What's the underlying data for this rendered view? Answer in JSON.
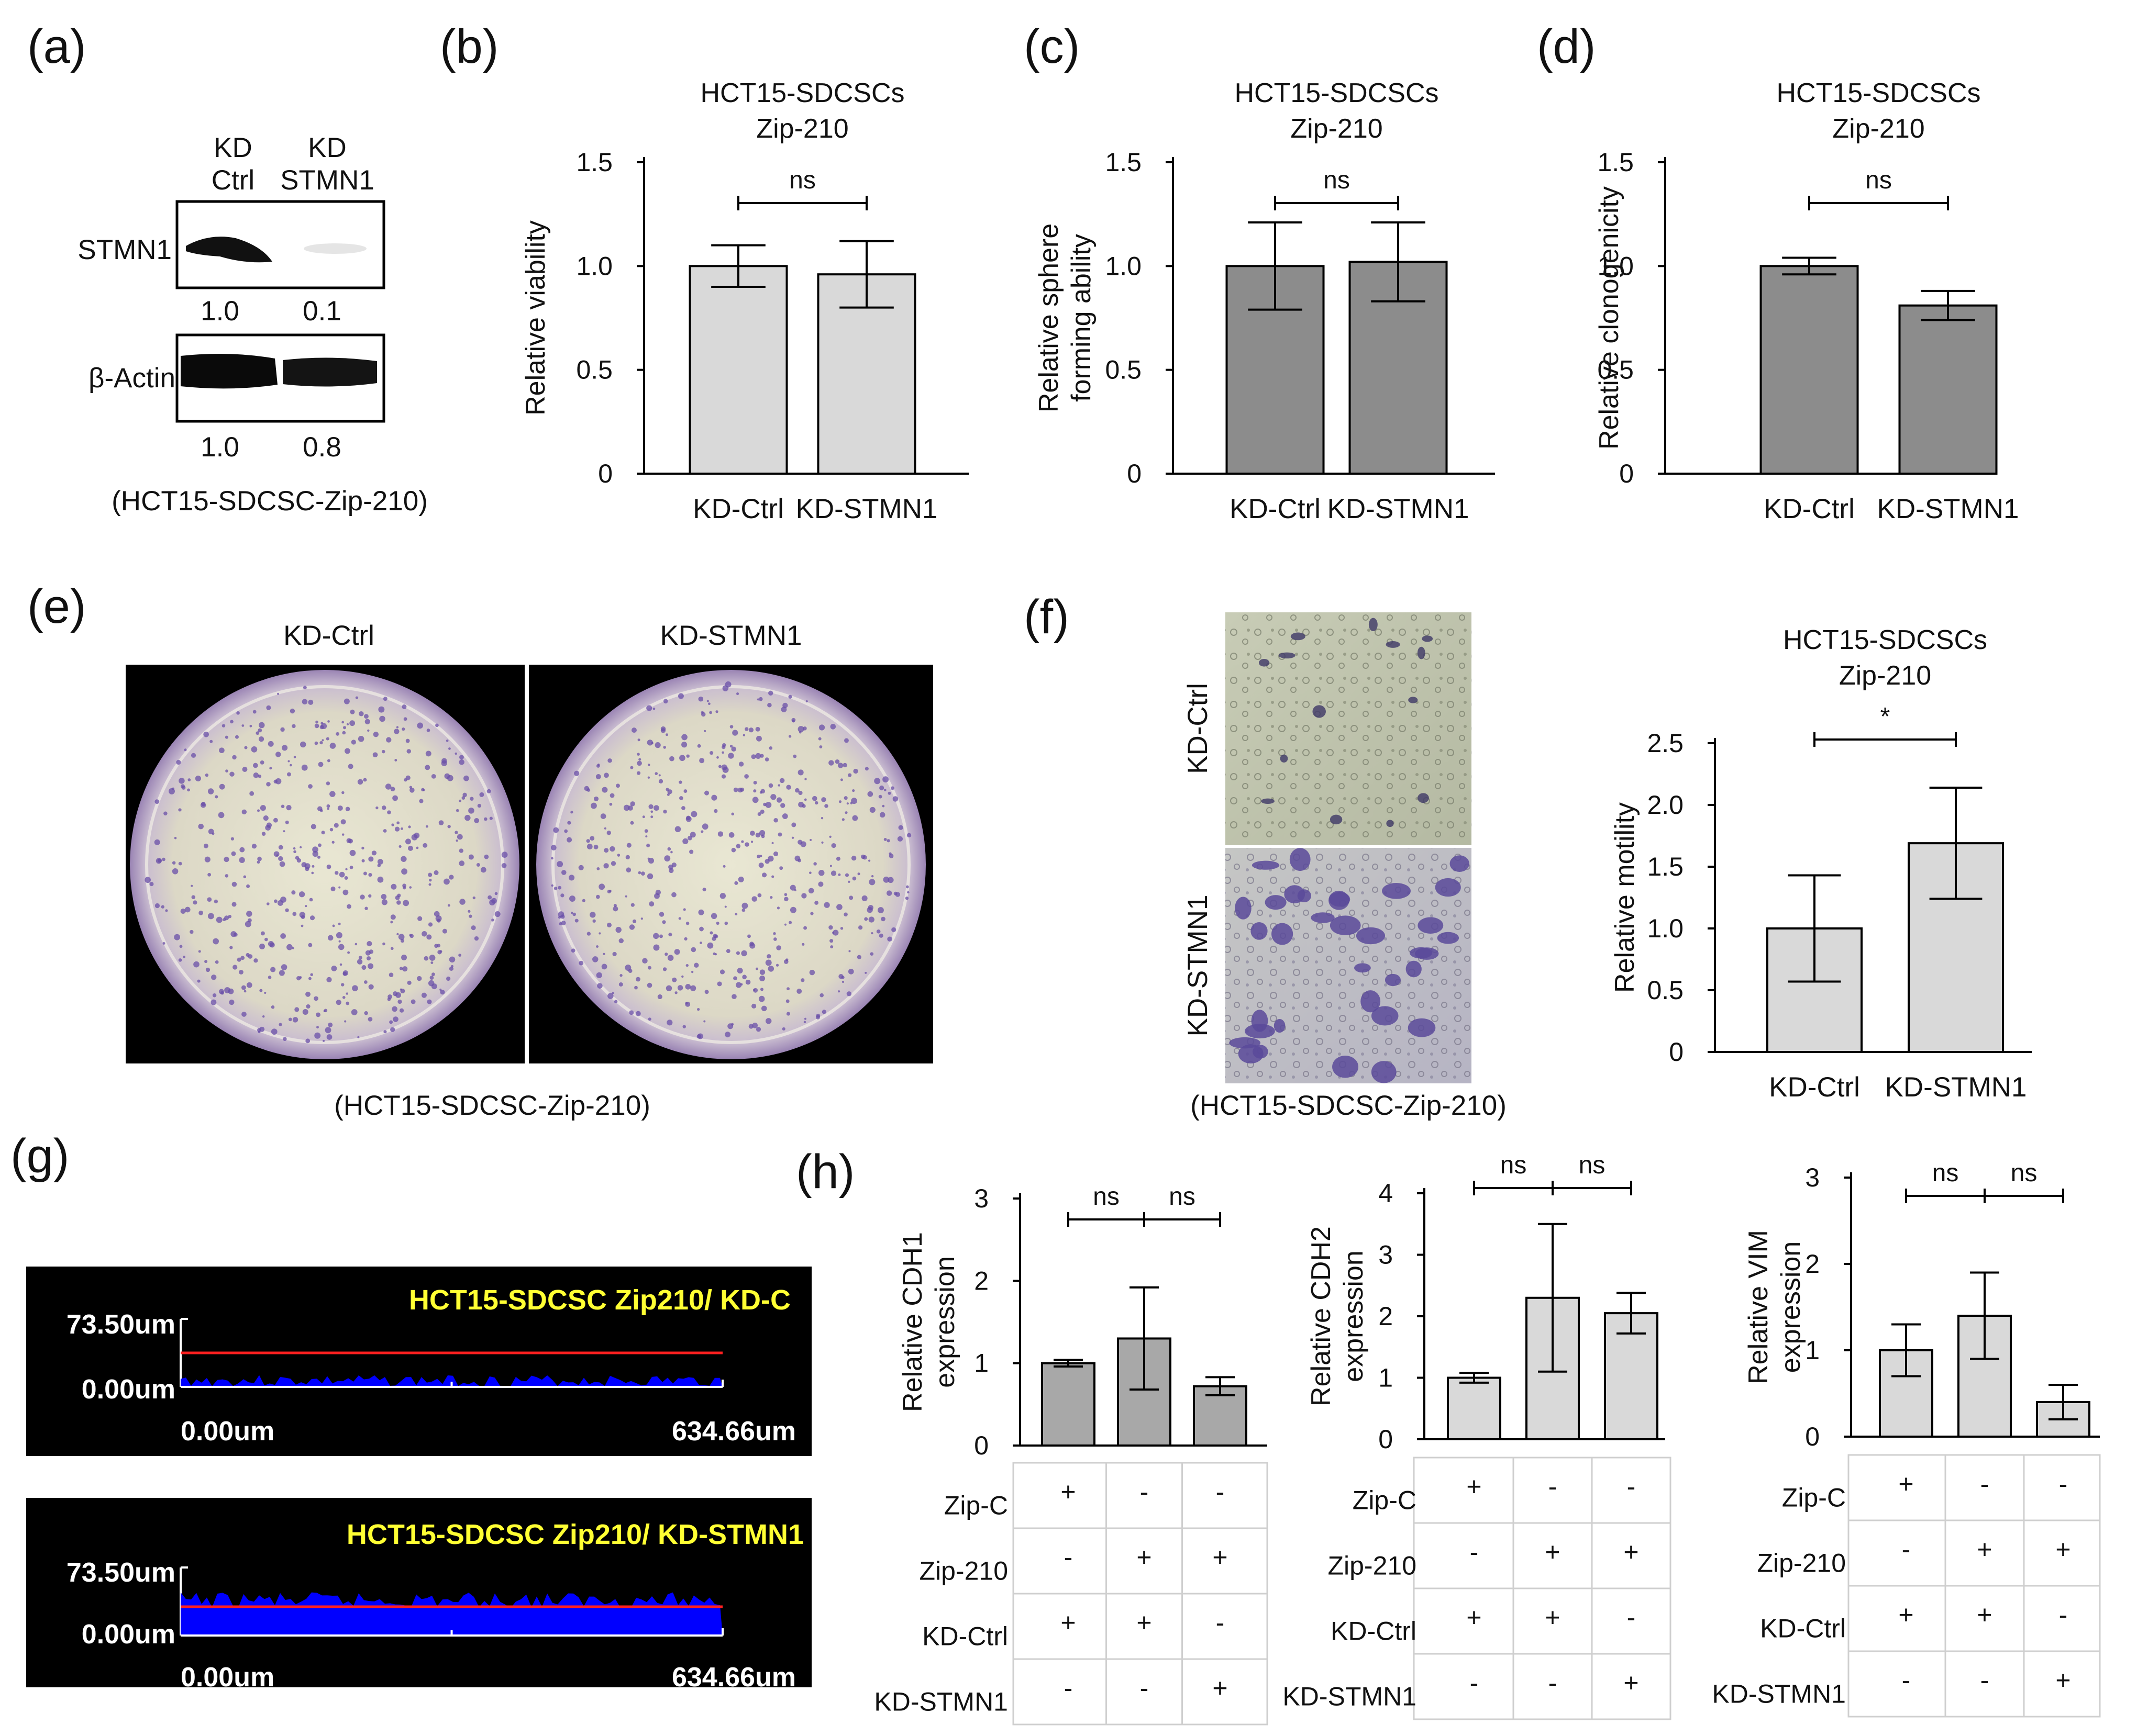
{
  "panel_labels": [
    "(a)",
    "(b)",
    "(c)",
    "(d)",
    "(e)",
    "(f)",
    "(g)",
    "(h)"
  ],
  "colors": {
    "bar_light": "#d9d9d9",
    "bar_dark": "#8c8c8c",
    "bar_mid": "#a8a8a8",
    "profile_fill": "#0000ff",
    "profile_line": "#ff2020",
    "profile_title": "#ffff33"
  },
  "panel_a": {
    "lanes": [
      "KD\nCtrl",
      "KD\nSTMN1"
    ],
    "bands": [
      {
        "name": "STMN1",
        "values": [
          "1.0",
          "0.1"
        ]
      },
      {
        "name": "β-Actin",
        "values": [
          "1.0",
          "0.8"
        ]
      }
    ],
    "caption": "(HCT15-SDCSC-Zip-210)"
  },
  "panel_e": {
    "labels": [
      "KD-Ctrl",
      "KD-STMN1"
    ],
    "caption": "(HCT15-SDCSC-Zip-210)"
  },
  "panel_f_images": {
    "labels": [
      "KD-Ctrl",
      "KD-STMN1"
    ],
    "caption": "(HCT15-SDCSC-Zip-210)"
  },
  "panel_g": {
    "profiles": [
      {
        "title": "HCT15-SDCSC Zip210/ KD-C",
        "ymax": "73.50um",
        "ymin": "0.00um",
        "xmin": "0.00um",
        "xmax": "634.66um",
        "height_level": 0.09
      },
      {
        "title": "HCT15-SDCSC Zip210/ KD-STMN1",
        "ymax": "73.50um",
        "ymin": "0.00um",
        "xmin": "0.00um",
        "xmax": "634.66um",
        "height_level": 0.52
      }
    ]
  },
  "panel_h_table": {
    "rows": [
      "Zip-C",
      "Zip-210",
      "KD-Ctrl",
      "KD-STMN1"
    ],
    "values": [
      [
        "+",
        "-",
        "-"
      ],
      [
        "-",
        "+",
        "+"
      ],
      [
        "+",
        "+",
        "-"
      ],
      [
        "-",
        "-",
        "+"
      ]
    ]
  },
  "chart_data": [
    {
      "id": "b",
      "type": "bar",
      "title": "HCT15-SDCSCs\nZip-210",
      "ylabel": "Relative viability",
      "categories": [
        "KD-Ctrl",
        "KD-STMN1"
      ],
      "values": [
        1.0,
        0.96
      ],
      "errors": [
        0.1,
        0.16
      ],
      "ylim": [
        0,
        1.5
      ],
      "yticks": [
        "0",
        "0.5",
        "1.0",
        "1.5"
      ],
      "significance": [
        "ns"
      ],
      "color": "#d9d9d9"
    },
    {
      "id": "c",
      "type": "bar",
      "title": "HCT15-SDCSCs\nZip-210",
      "ylabel": "Relative sphere\nforming ability",
      "categories": [
        "KD-Ctrl",
        "KD-STMN1"
      ],
      "values": [
        1.0,
        1.02
      ],
      "errors": [
        0.21,
        0.19
      ],
      "ylim": [
        0,
        1.5
      ],
      "yticks": [
        "0",
        "0.5",
        "1.0",
        "1.5"
      ],
      "significance": [
        "ns"
      ],
      "color": "#8c8c8c"
    },
    {
      "id": "d",
      "type": "bar",
      "title": "HCT15-SDCSCs\nZip-210",
      "ylabel": "Relative clonogenicity",
      "categories": [
        "KD-Ctrl",
        "KD-STMN1"
      ],
      "values": [
        1.0,
        0.81
      ],
      "errors": [
        0.04,
        0.07
      ],
      "ylim": [
        0,
        1.5
      ],
      "yticks": [
        "0",
        "0.5",
        "1.0",
        "1.5"
      ],
      "significance": [
        "ns"
      ],
      "color": "#8c8c8c"
    },
    {
      "id": "f",
      "type": "bar",
      "title": "HCT15-SDCSCs\nZip-210",
      "ylabel": "Relative motility",
      "categories": [
        "KD-Ctrl",
        "KD-STMN1"
      ],
      "values": [
        1.0,
        1.69
      ],
      "errors": [
        0.43,
        0.45
      ],
      "ylim": [
        0,
        2.5
      ],
      "yticks": [
        "0",
        "0.5",
        "1.0",
        "1.5",
        "2.0",
        "2.5"
      ],
      "significance": [
        "*"
      ],
      "color": "#d9d9d9"
    },
    {
      "id": "h1",
      "type": "bar",
      "title": "",
      "ylabel": "Relative CDH1\nexpression",
      "categories": [
        "",
        "",
        ""
      ],
      "values": [
        1.0,
        1.3,
        0.72
      ],
      "errors": [
        0.04,
        0.62,
        0.11
      ],
      "ylim": [
        0,
        3
      ],
      "yticks": [
        "0",
        "1",
        "2",
        "3"
      ],
      "significance": [
        "ns",
        "ns"
      ],
      "color": "#a8a8a8"
    },
    {
      "id": "h2",
      "type": "bar",
      "title": "",
      "ylabel": "Relative CDH2\nexpression",
      "categories": [
        "",
        "",
        ""
      ],
      "values": [
        1.0,
        2.3,
        2.05
      ],
      "errors": [
        0.08,
        1.2,
        0.33
      ],
      "ylim": [
        0,
        4
      ],
      "yticks": [
        "0",
        "1",
        "2",
        "3",
        "4"
      ],
      "significance": [
        "ns",
        "ns"
      ],
      "color": "#d9d9d9"
    },
    {
      "id": "h3",
      "type": "bar",
      "title": "",
      "ylabel": "Relative VIM\nexpression",
      "categories": [
        "",
        "",
        ""
      ],
      "values": [
        1.0,
        1.4,
        0.4
      ],
      "errors": [
        0.3,
        0.5,
        0.2
      ],
      "ylim": [
        0,
        3
      ],
      "yticks": [
        "0",
        "1",
        "2",
        "3"
      ],
      "significance": [
        "ns",
        "ns"
      ],
      "color": "#d9d9d9"
    }
  ]
}
